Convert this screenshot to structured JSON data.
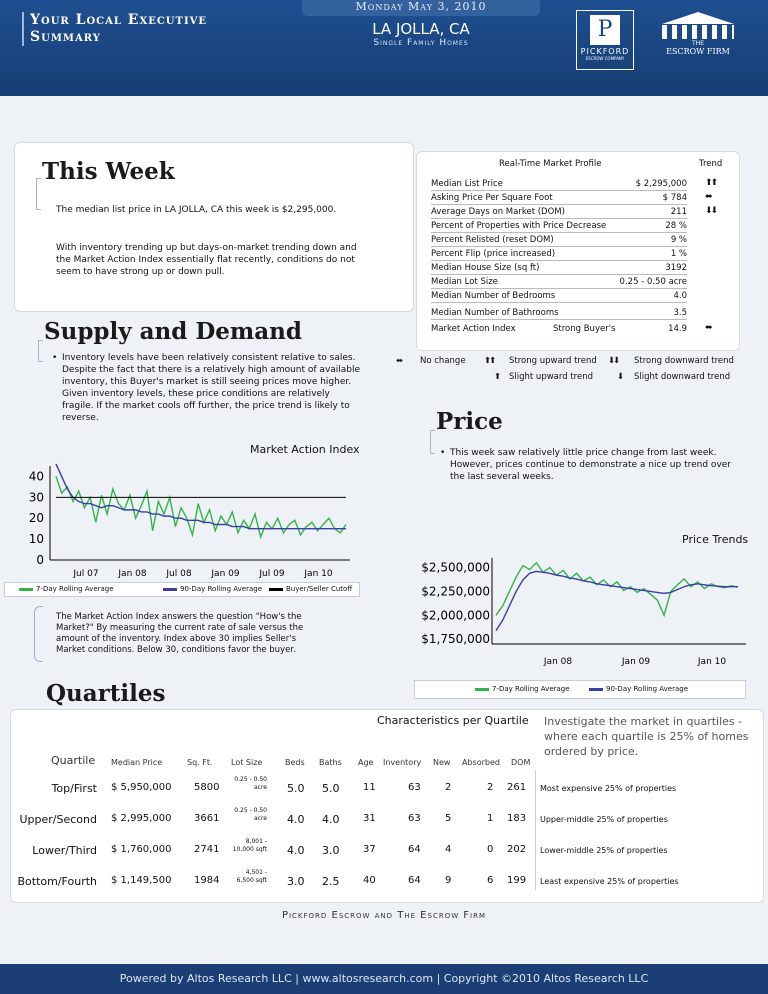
{
  "header": {
    "title_line1": "Your Local Executive",
    "title_line2": "Summary",
    "date": "Monday May 3, 2010",
    "city": "LA JOLLA, CA",
    "property_type": "Single Family Homes",
    "logo_pickford": "PICKFORD",
    "logo_pickford_sub": "ESCROW COMPANY",
    "logo_pickford_mono": "P",
    "logo_escrow_the": "THE",
    "logo_escrow_name": "ESCROW FIRM"
  },
  "this_week": {
    "title": "This Week",
    "p1": "The median list price in LA JOLLA, CA this week is $2,295,000.",
    "p2": "With inventory trending up but days-on-market trending down and the Market Action Index essentially flat recently, conditions do not seem to have strong up or down pull."
  },
  "profile": {
    "title": "Real-Time Market Profile",
    "trend_header": "Trend",
    "rows": [
      {
        "label": "Median List Price",
        "value": "$ 2,295,000",
        "trend": "⬆⬆"
      },
      {
        "label": "Asking Price Per Square Foot",
        "value": "$ 784",
        "trend": "⬌"
      },
      {
        "label": "Average Days on Market (DOM)",
        "value": "211",
        "trend": "⬇⬇"
      },
      {
        "label": "Percent of Properties with Price Decrease",
        "value": "28 %",
        "trend": ""
      },
      {
        "label": "Percent Relisted (reset DOM)",
        "value": "9 %",
        "trend": ""
      },
      {
        "label": "Percent Flip (price increased)",
        "value": "1 %",
        "trend": ""
      },
      {
        "label": "Median House Size (sq ft)",
        "value": "3192",
        "trend": ""
      },
      {
        "label": "Median Lot Size",
        "value": "0.25 - 0.50 acre",
        "trend": ""
      },
      {
        "label": "Median Number of Bedrooms",
        "value": "4.0",
        "trend": ""
      },
      {
        "label": "Median Number of Bathrooms",
        "value": "3.5",
        "trend": ""
      }
    ],
    "mai_label": "Market Action Index",
    "mai_status": "Strong Buyer's",
    "mai_value": "14.9",
    "mai_trend": "⬌"
  },
  "trend_legend": {
    "no_change": "No change",
    "strong_up": "Strong upward trend",
    "strong_down": "Strong downward trend",
    "slight_up": "Slight upward trend",
    "slight_down": "Slight downward trend",
    "icon_no_change": "⬌",
    "icon_strong_up": "⬆⬆",
    "icon_strong_down": "⬇⬇",
    "icon_slight_up": "⬆",
    "icon_slight_down": "⬇"
  },
  "supply": {
    "title": "Supply and Demand",
    "text": "Inventory levels have been relatively consistent relative to sales. Despite the fact that there is a relatively high amount of available inventory, this Buyer's market is still seeing prices move higher. Given inventory levels, these price conditions are relatively fragile. If the market cools off further, the price trend is likely to reverse.",
    "note": "The Market Action Index answers the question \"How's the Market?\" By measuring the current rate of sale versus the amount of the inventory.  Index above 30 implies Seller's Market conditions. Below 30, conditions favor the buyer."
  },
  "price": {
    "title": "Price",
    "text": "This week saw relatively little price change from last week. However, prices continue to demonstrate a nice up trend over the last several weeks."
  },
  "legends": {
    "rolling7": "7-Day Rolling Average",
    "rolling90": "90-Day Rolling Average",
    "cutoff": "Buyer/Seller Cutoff"
  },
  "chart_data": [
    {
      "type": "line",
      "title": "Market Action Index",
      "x_ticks": [
        "Jul 07",
        "Jan 08",
        "Jul 08",
        "Jan 09",
        "Jul 09",
        "Jan 10"
      ],
      "y_ticks": [
        "40",
        "30",
        "20",
        "10",
        "0"
      ],
      "ylim": [
        0,
        45
      ],
      "series": [
        {
          "name": "7-Day Rolling Average",
          "color": "#33b44a",
          "values": [
            40,
            32,
            35,
            28,
            33,
            25,
            30,
            18,
            31,
            22,
            34,
            27,
            24,
            31,
            20,
            26,
            33,
            14,
            28,
            22,
            30,
            16,
            25,
            20,
            12,
            27,
            18,
            24,
            14,
            21,
            17,
            23,
            13,
            19,
            15,
            22,
            11,
            18,
            15,
            20,
            13,
            17,
            19,
            12,
            16,
            18,
            14,
            17,
            20,
            15,
            13,
            17
          ]
        },
        {
          "name": "90-Day Rolling Average",
          "color": "#3b3fa8",
          "values": [
            46,
            40,
            34,
            30,
            28,
            27,
            27,
            26,
            25,
            26,
            26,
            25,
            24,
            24,
            24,
            23,
            23,
            22,
            22,
            21,
            21,
            20,
            20,
            19,
            19,
            19,
            18,
            18,
            17,
            17,
            17,
            16,
            16,
            16,
            15,
            15,
            15,
            15,
            15,
            15,
            15,
            15,
            15,
            15,
            15,
            15,
            15,
            15,
            15,
            15,
            15,
            15
          ]
        },
        {
          "name": "Buyer/Seller Cutoff",
          "color": "#000000",
          "values": [
            30,
            30
          ]
        }
      ]
    },
    {
      "type": "line",
      "title": "Price Trends",
      "x_ticks": [
        "Jan 08",
        "Jan 09",
        "Jan 10"
      ],
      "y_ticks": [
        "$2,500,000",
        "$2,250,000",
        "$2,000,000",
        "$1,750,000"
      ],
      "ylim": [
        1700000,
        2600000
      ],
      "series": [
        {
          "name": "7-Day Rolling Average",
          "color": "#33b44a",
          "values": [
            2000000,
            2100000,
            2250000,
            2400000,
            2520000,
            2480000,
            2550000,
            2450000,
            2500000,
            2420000,
            2470000,
            2380000,
            2440000,
            2360000,
            2400000,
            2320000,
            2370000,
            2300000,
            2350000,
            2260000,
            2300000,
            2240000,
            2280000,
            2220000,
            2160000,
            2000000,
            2250000,
            2320000,
            2380000,
            2300000,
            2350000,
            2280000,
            2330000,
            2300000,
            2290000,
            2310000,
            2295000
          ]
        },
        {
          "name": "90-Day Rolling Average",
          "color": "#3b3fa8",
          "values": [
            1840000,
            1950000,
            2100000,
            2250000,
            2370000,
            2440000,
            2460000,
            2450000,
            2440000,
            2420000,
            2410000,
            2390000,
            2380000,
            2360000,
            2350000,
            2330000,
            2320000,
            2310000,
            2300000,
            2290000,
            2280000,
            2270000,
            2260000,
            2250000,
            2240000,
            2230000,
            2240000,
            2270000,
            2300000,
            2320000,
            2330000,
            2320000,
            2310000,
            2305000,
            2300000,
            2300000,
            2300000
          ]
        }
      ]
    }
  ],
  "quartiles": {
    "title": "Quartiles",
    "characteristics": "Characteristics per Quartile",
    "intro": "Investigate the market in quartiles - where each quartile is 25% of homes ordered by price.",
    "headers": {
      "quartile": "Quartile",
      "median_price": "Median Price",
      "sqft": "Sq. Ft.",
      "lot": "Lot Size",
      "beds": "Beds",
      "baths": "Baths",
      "age": "Age",
      "inventory": "Inventory",
      "new": "New",
      "absorbed": "Absorbed",
      "dom": "DOM"
    },
    "rows": [
      {
        "name": "Top/First",
        "price": "$ 5,950,000",
        "sqft": "5800",
        "lot1": "0.25 - 0.50",
        "lot2": "acre",
        "beds": "5.0",
        "baths": "5.0",
        "age": "11",
        "inventory": "63",
        "new": "2",
        "absorbed": "2",
        "dom": "261",
        "desc": "Most expensive 25% of properties"
      },
      {
        "name": "Upper/Second",
        "price": "$ 2,995,000",
        "sqft": "3661",
        "lot1": "0.25 - 0.50",
        "lot2": "acre",
        "beds": "4.0",
        "baths": "4.0",
        "age": "31",
        "inventory": "63",
        "new": "5",
        "absorbed": "1",
        "dom": "183",
        "desc": "Upper-middle 25% of properties"
      },
      {
        "name": "Lower/Third",
        "price": "$ 1,760,000",
        "sqft": "2741",
        "lot1": "8,001 -",
        "lot2": "10,000 sqft",
        "beds": "4.0",
        "baths": "3.0",
        "age": "37",
        "inventory": "64",
        "new": "4",
        "absorbed": "0",
        "dom": "202",
        "desc": "Lower-middle 25% of properties"
      },
      {
        "name": "Bottom/Fourth",
        "price": "$ 1,149,500",
        "sqft": "1984",
        "lot1": "4,501 -",
        "lot2": "6,500 sqft",
        "beds": "3.0",
        "baths": "2.5",
        "age": "40",
        "inventory": "64",
        "new": "9",
        "absorbed": "6",
        "dom": "199",
        "desc": "Least expensive 25% of properties"
      }
    ]
  },
  "company_line": "Pickford Escrow and The Escrow Firm",
  "footer": "Powered by Altos Research LLC | www.altosresearch.com | Copyright ©2010 Altos Research LLC"
}
